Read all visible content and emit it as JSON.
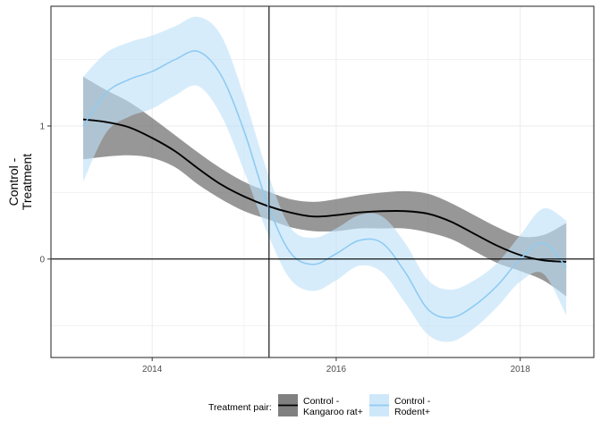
{
  "chart_data": {
    "type": "line",
    "title": "",
    "xlabel": "",
    "ylabel": "Control -\nTreatment",
    "xlim": [
      2012.9,
      2018.8
    ],
    "ylim": [
      -0.74,
      1.9
    ],
    "x_ticks": [
      2014,
      2016,
      2018
    ],
    "y_ticks": [
      0,
      1
    ],
    "x_tick_labels": [
      "2014",
      "2016",
      "2018"
    ],
    "y_tick_labels": [
      "0",
      "1"
    ],
    "grid": true,
    "reference_lines": {
      "vertical_x": 2015.27,
      "horizontal_y": 0
    },
    "legend": {
      "title": "Treatment pair:",
      "position": "bottom",
      "entries": [
        {
          "label_lines": [
            "Control -",
            "Kangaroo rat+"
          ],
          "series_index": 0
        },
        {
          "label_lines": [
            "Control -",
            "Rodent+"
          ],
          "series_index": 1
        }
      ]
    },
    "series": [
      {
        "name": "Control - Kangaroo rat+",
        "line_color": "#000000",
        "band_color": "#666666",
        "band_opacity": 0.68,
        "points": [
          {
            "x": 2013.25,
            "y": 1.05,
            "lo": 0.75,
            "hi": 1.37
          },
          {
            "x": 2013.5,
            "y": 1.03,
            "lo": 0.77,
            "hi": 1.27
          },
          {
            "x": 2013.75,
            "y": 0.99,
            "lo": 0.78,
            "hi": 1.18
          },
          {
            "x": 2014.0,
            "y": 0.91,
            "lo": 0.76,
            "hi": 1.06
          },
          {
            "x": 2014.25,
            "y": 0.81,
            "lo": 0.69,
            "hi": 0.93
          },
          {
            "x": 2014.5,
            "y": 0.68,
            "lo": 0.56,
            "hi": 0.8
          },
          {
            "x": 2014.75,
            "y": 0.56,
            "lo": 0.45,
            "hi": 0.68
          },
          {
            "x": 2015.0,
            "y": 0.47,
            "lo": 0.36,
            "hi": 0.58
          },
          {
            "x": 2015.25,
            "y": 0.4,
            "lo": 0.3,
            "hi": 0.51
          },
          {
            "x": 2015.5,
            "y": 0.35,
            "lo": 0.24,
            "hi": 0.45
          },
          {
            "x": 2015.75,
            "y": 0.32,
            "lo": 0.21,
            "hi": 0.43
          },
          {
            "x": 2016.0,
            "y": 0.33,
            "lo": 0.21,
            "hi": 0.45
          },
          {
            "x": 2016.25,
            "y": 0.35,
            "lo": 0.23,
            "hi": 0.48
          },
          {
            "x": 2016.5,
            "y": 0.36,
            "lo": 0.23,
            "hi": 0.5
          },
          {
            "x": 2016.75,
            "y": 0.36,
            "lo": 0.23,
            "hi": 0.51
          },
          {
            "x": 2017.0,
            "y": 0.34,
            "lo": 0.2,
            "hi": 0.49
          },
          {
            "x": 2017.25,
            "y": 0.28,
            "lo": 0.15,
            "hi": 0.42
          },
          {
            "x": 2017.5,
            "y": 0.19,
            "lo": 0.06,
            "hi": 0.33
          },
          {
            "x": 2017.75,
            "y": 0.1,
            "lo": -0.03,
            "hi": 0.24
          },
          {
            "x": 2018.0,
            "y": 0.03,
            "lo": -0.09,
            "hi": 0.17
          },
          {
            "x": 2018.25,
            "y": -0.01,
            "lo": -0.16,
            "hi": 0.18
          },
          {
            "x": 2018.5,
            "y": -0.02,
            "lo": -0.28,
            "hi": 0.27
          }
        ]
      },
      {
        "name": "Control - Rodent+",
        "line_color": "#8ecbf2",
        "band_color": "#bfe1f9",
        "band_opacity": 0.62,
        "points": [
          {
            "x": 2013.25,
            "y": 1.0,
            "lo": 0.58,
            "hi": 1.37
          },
          {
            "x": 2013.5,
            "y": 1.25,
            "lo": 0.95,
            "hi": 1.55
          },
          {
            "x": 2013.75,
            "y": 1.35,
            "lo": 1.07,
            "hi": 1.63
          },
          {
            "x": 2014.0,
            "y": 1.41,
            "lo": 1.13,
            "hi": 1.68
          },
          {
            "x": 2014.25,
            "y": 1.5,
            "lo": 1.23,
            "hi": 1.75
          },
          {
            "x": 2014.5,
            "y": 1.56,
            "lo": 1.3,
            "hi": 1.82
          },
          {
            "x": 2014.75,
            "y": 1.38,
            "lo": 1.08,
            "hi": 1.68
          },
          {
            "x": 2015.0,
            "y": 0.96,
            "lo": 0.66,
            "hi": 1.22
          },
          {
            "x": 2015.25,
            "y": 0.42,
            "lo": 0.2,
            "hi": 0.66
          },
          {
            "x": 2015.5,
            "y": 0.05,
            "lo": -0.15,
            "hi": 0.24
          },
          {
            "x": 2015.75,
            "y": -0.04,
            "lo": -0.24,
            "hi": 0.16
          },
          {
            "x": 2016.0,
            "y": 0.04,
            "lo": -0.16,
            "hi": 0.23
          },
          {
            "x": 2016.25,
            "y": 0.14,
            "lo": -0.05,
            "hi": 0.33
          },
          {
            "x": 2016.5,
            "y": 0.12,
            "lo": -0.1,
            "hi": 0.32
          },
          {
            "x": 2016.75,
            "y": -0.1,
            "lo": -0.33,
            "hi": 0.12
          },
          {
            "x": 2017.0,
            "y": -0.38,
            "lo": -0.57,
            "hi": -0.16
          },
          {
            "x": 2017.25,
            "y": -0.44,
            "lo": -0.62,
            "hi": -0.23
          },
          {
            "x": 2017.5,
            "y": -0.35,
            "lo": -0.52,
            "hi": -0.16
          },
          {
            "x": 2017.75,
            "y": -0.2,
            "lo": -0.36,
            "hi": -0.03
          },
          {
            "x": 2018.0,
            "y": 0.0,
            "lo": -0.17,
            "hi": 0.18
          },
          {
            "x": 2018.25,
            "y": 0.12,
            "lo": -0.11,
            "hi": 0.38
          },
          {
            "x": 2018.5,
            "y": -0.06,
            "lo": -0.42,
            "hi": 0.29
          }
        ]
      }
    ]
  }
}
